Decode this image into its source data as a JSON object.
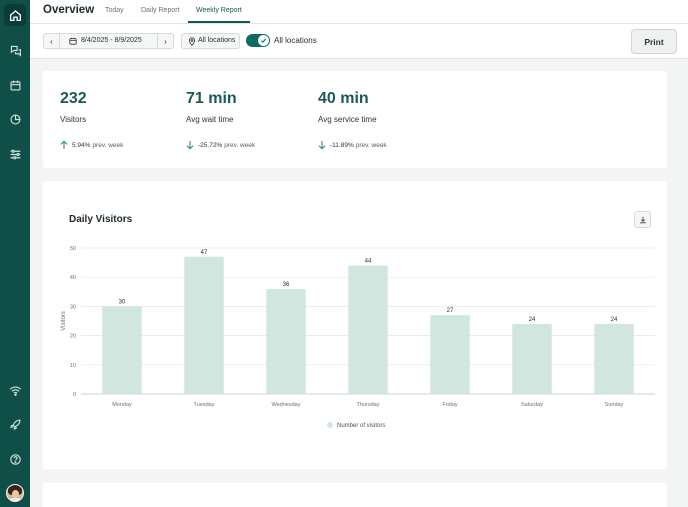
{
  "header": {
    "title": "Overview",
    "tabs": [
      {
        "label": "Today"
      },
      {
        "label": "Daily Report"
      },
      {
        "label": "Weekly Report"
      }
    ]
  },
  "toolbar": {
    "date_range": "8/4/2025 - 8/9/2025",
    "location_button": "All locations",
    "toggle_label": "All locations",
    "toggle_on": true,
    "print_label": "Print"
  },
  "stats": [
    {
      "value": "232",
      "label": "Visitors",
      "change": "5.94%",
      "change_suffix": "prev. week",
      "direction": "up"
    },
    {
      "value": "71 min",
      "label": "Avg wait time",
      "change": "-25.72%",
      "change_suffix": "prev. week",
      "direction": "down"
    },
    {
      "value": "40 min",
      "label": "Avg service time",
      "change": "-11.89%",
      "change_suffix": "prev. week",
      "direction": "down"
    }
  ],
  "colors": {
    "sidebar": "#0f4f48",
    "accent": "#0f5a52",
    "bar": "#d1e6df",
    "up_arrow": "#2e9b72",
    "down_arrow": "#2e9b72"
  },
  "chart_data": {
    "type": "bar",
    "title": "Daily Visitors",
    "categories": [
      "Monday",
      "Tuesday",
      "Wednesday",
      "Thursday",
      "Friday",
      "Saturday",
      "Sunday"
    ],
    "series": [
      {
        "name": "Number of visitors",
        "values": [
          30,
          47,
          36,
          44,
          27,
          24,
          24
        ]
      }
    ],
    "ylabel": "Visitors",
    "xlabel": "",
    "ylim": [
      0,
      50
    ],
    "yticks": [
      0,
      10,
      20,
      30,
      40,
      50
    ],
    "grid": true,
    "legend": "bottom-center",
    "data_labels": true
  }
}
